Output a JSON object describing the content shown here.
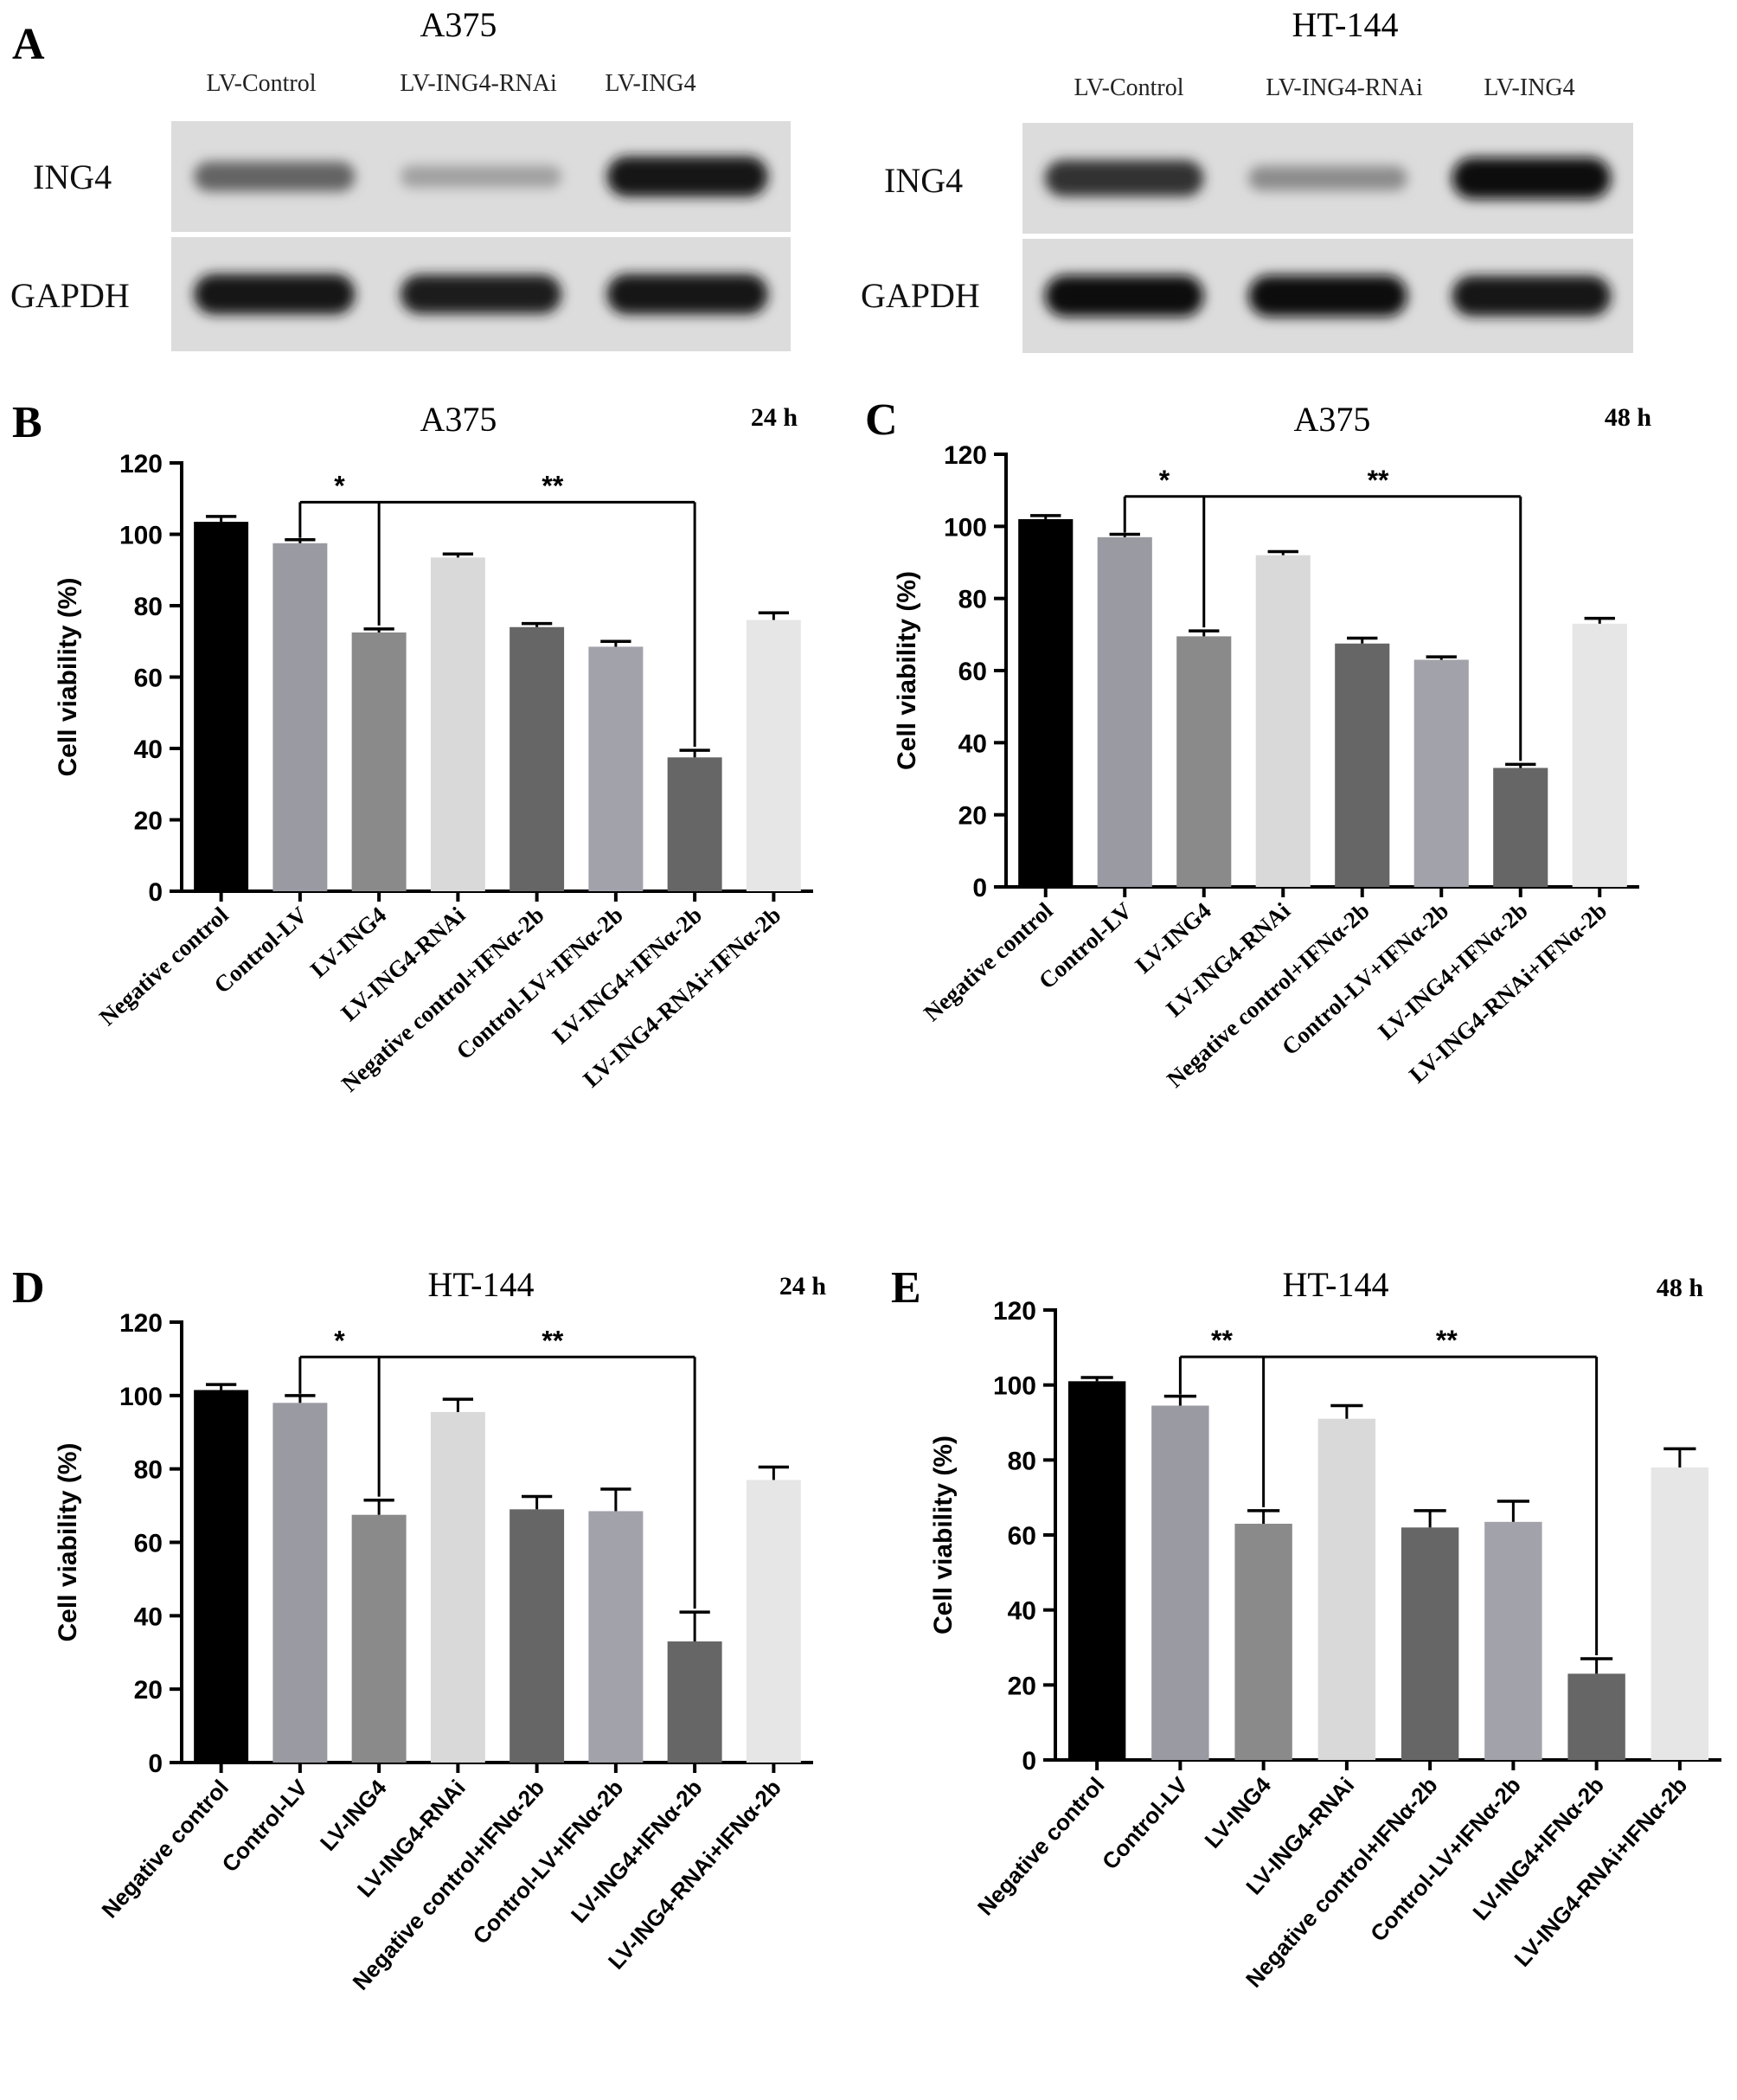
{
  "blot_panel": {
    "letter": "A",
    "blots": [
      {
        "title": "A375",
        "lanes": [
          "LV-Control",
          "LV-ING4-RNAi",
          "LV-ING4"
        ],
        "rows": [
          {
            "label": "ING4",
            "intensity": [
              0.55,
              0.25,
              0.95
            ]
          },
          {
            "label": "GAPDH",
            "intensity": [
              0.95,
              0.9,
              0.95
            ]
          }
        ]
      },
      {
        "title": "HT-144",
        "lanes": [
          "LV-Control",
          "LV-ING4-RNAi",
          "LV-ING4"
        ],
        "rows": [
          {
            "label": "ING4",
            "intensity": [
              0.8,
              0.35,
              1.0
            ]
          },
          {
            "label": "GAPDH",
            "intensity": [
              1.0,
              1.0,
              0.95
            ]
          }
        ]
      }
    ]
  },
  "chart_data": [
    {
      "panel": "B",
      "type": "bar",
      "title": "A375",
      "time": "24 h",
      "ylabel": "Cell viability (%)",
      "ylim": [
        0,
        120
      ],
      "yticks": [
        0,
        20,
        40,
        60,
        80,
        100,
        120
      ],
      "categories": [
        "Negative control",
        "Control-LV",
        "LV-ING4",
        "LV-ING4-RNAi",
        "Negative control+IFNα-2b",
        "Control-LV+IFNα-2b",
        "LV-ING4+IFNα-2b",
        "LV-ING4-RNAi+IFNα-2b"
      ],
      "values": [
        103.5,
        97.5,
        72.5,
        93.5,
        74,
        68.5,
        37.5,
        76
      ],
      "errors": [
        1.5,
        1,
        1,
        1,
        1,
        1.5,
        2,
        2
      ],
      "significance": [
        {
          "from": 1,
          "to": 2,
          "label": "*"
        },
        {
          "from": 1,
          "to": 6,
          "label": "**"
        }
      ],
      "bar_colors": [
        "#000000",
        "#9a9aa3",
        "#8a8a8a",
        "#d9d9d9",
        "#666666",
        "#a2a2aa",
        "#666666",
        "#e6e6e6"
      ],
      "tick_style": "serif"
    },
    {
      "panel": "C",
      "type": "bar",
      "title": "A375",
      "time": "48 h",
      "ylabel": "Cell viability (%)",
      "ylim": [
        0,
        120
      ],
      "yticks": [
        0,
        20,
        40,
        60,
        80,
        100,
        120
      ],
      "categories": [
        "Negative control",
        "Control-LV",
        "LV-ING4",
        "LV-ING4-RNAi",
        "Negative control+IFNα-2b",
        "Control-LV+IFNα-2b",
        "LV-ING4+IFNα-2b",
        "LV-ING4-RNAi+IFNα-2b"
      ],
      "values": [
        102,
        97,
        69.5,
        92,
        67.5,
        63,
        33,
        73
      ],
      "errors": [
        1,
        0.8,
        1.5,
        1,
        1.5,
        0.8,
        1,
        1.5
      ],
      "significance": [
        {
          "from": 1,
          "to": 2,
          "label": "*"
        },
        {
          "from": 1,
          "to": 6,
          "label": "**"
        }
      ],
      "bar_colors": [
        "#000000",
        "#9a9aa3",
        "#8a8a8a",
        "#d9d9d9",
        "#666666",
        "#a2a2aa",
        "#666666",
        "#e6e6e6"
      ],
      "tick_style": "serif"
    },
    {
      "panel": "D",
      "type": "bar",
      "title": "HT-144",
      "time": "24 h",
      "ylabel": "Cell viability (%)",
      "ylim": [
        0,
        120
      ],
      "yticks": [
        0,
        20,
        40,
        60,
        80,
        100,
        120
      ],
      "categories": [
        "Negative control",
        "Control-LV",
        "LV-ING4",
        "LV-ING4-RNAi",
        "Negative control+IFNα-2b",
        "Control-LV+IFNα-2b",
        "LV-ING4+IFNα-2b",
        "LV-ING4-RNAi+IFNα-2b"
      ],
      "values": [
        101.5,
        98,
        67.5,
        95.5,
        69,
        68.5,
        33,
        77
      ],
      "errors": [
        1.5,
        2,
        4,
        3.5,
        3.5,
        6,
        8,
        3.5
      ],
      "significance": [
        {
          "from": 1,
          "to": 2,
          "label": "*"
        },
        {
          "from": 1,
          "to": 6,
          "label": "**"
        }
      ],
      "bar_colors": [
        "#000000",
        "#9a9aa3",
        "#8a8a8a",
        "#d9d9d9",
        "#666666",
        "#a2a2aa",
        "#666666",
        "#e6e6e6"
      ],
      "tick_style": "sans"
    },
    {
      "panel": "E",
      "type": "bar",
      "title": "HT-144",
      "time": "48 h",
      "ylabel": "Cell viability (%)",
      "ylim": [
        0,
        120
      ],
      "yticks": [
        0,
        20,
        40,
        60,
        80,
        100,
        120
      ],
      "categories": [
        "Negative control",
        "Control-LV",
        "LV-ING4",
        "LV-ING4-RNAi",
        "Negative control+IFNα-2b",
        "Control-LV+IFNα-2b",
        "LV-ING4+IFNα-2b",
        "LV-ING4-RNAi+IFNα-2b"
      ],
      "values": [
        101,
        94.5,
        63,
        91,
        62,
        63.5,
        23,
        78
      ],
      "errors": [
        1,
        2.5,
        3.5,
        3.5,
        4.5,
        5.5,
        4,
        5
      ],
      "significance": [
        {
          "from": 1,
          "to": 2,
          "label": "**"
        },
        {
          "from": 1,
          "to": 6,
          "label": "**"
        }
      ],
      "bar_colors": [
        "#000000",
        "#9a9aa3",
        "#8a8a8a",
        "#d9d9d9",
        "#666666",
        "#a2a2aa",
        "#666666",
        "#e6e6e6"
      ],
      "tick_style": "sans"
    }
  ]
}
